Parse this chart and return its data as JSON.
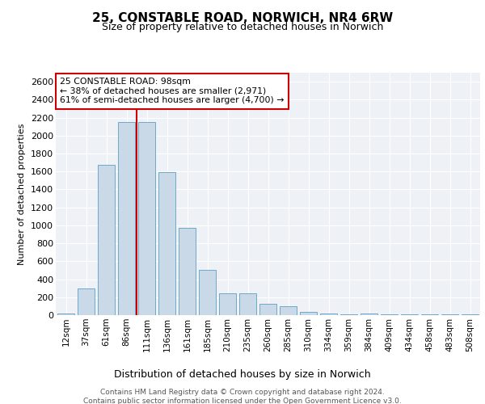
{
  "title_line1": "25, CONSTABLE ROAD, NORWICH, NR4 6RW",
  "title_line2": "Size of property relative to detached houses in Norwich",
  "xlabel": "Distribution of detached houses by size in Norwich",
  "ylabel": "Number of detached properties",
  "categories": [
    "12sqm",
    "37sqm",
    "61sqm",
    "86sqm",
    "111sqm",
    "136sqm",
    "161sqm",
    "185sqm",
    "210sqm",
    "235sqm",
    "260sqm",
    "285sqm",
    "310sqm",
    "334sqm",
    "359sqm",
    "384sqm",
    "409sqm",
    "434sqm",
    "458sqm",
    "483sqm",
    "508sqm"
  ],
  "values": [
    20,
    300,
    1670,
    2150,
    2150,
    1595,
    970,
    500,
    245,
    245,
    125,
    100,
    35,
    15,
    5,
    20,
    5,
    12,
    5,
    5,
    10
  ],
  "bar_color": "#c9d9e8",
  "bar_edge_color": "#6fa8c9",
  "vline_color": "#cc0000",
  "vline_pos": 3.5,
  "annotation_text": "25 CONSTABLE ROAD: 98sqm\n← 38% of detached houses are smaller (2,971)\n61% of semi-detached houses are larger (4,700) →",
  "annotation_box_color": "#ffffff",
  "annotation_box_edge": "#cc0000",
  "ylim": [
    0,
    2700
  ],
  "yticks": [
    0,
    200,
    400,
    600,
    800,
    1000,
    1200,
    1400,
    1600,
    1800,
    2000,
    2200,
    2400,
    2600
  ],
  "plot_bg_color": "#eef2f7",
  "footer_line1": "Contains HM Land Registry data © Crown copyright and database right 2024.",
  "footer_line2": "Contains public sector information licensed under the Open Government Licence v3.0."
}
